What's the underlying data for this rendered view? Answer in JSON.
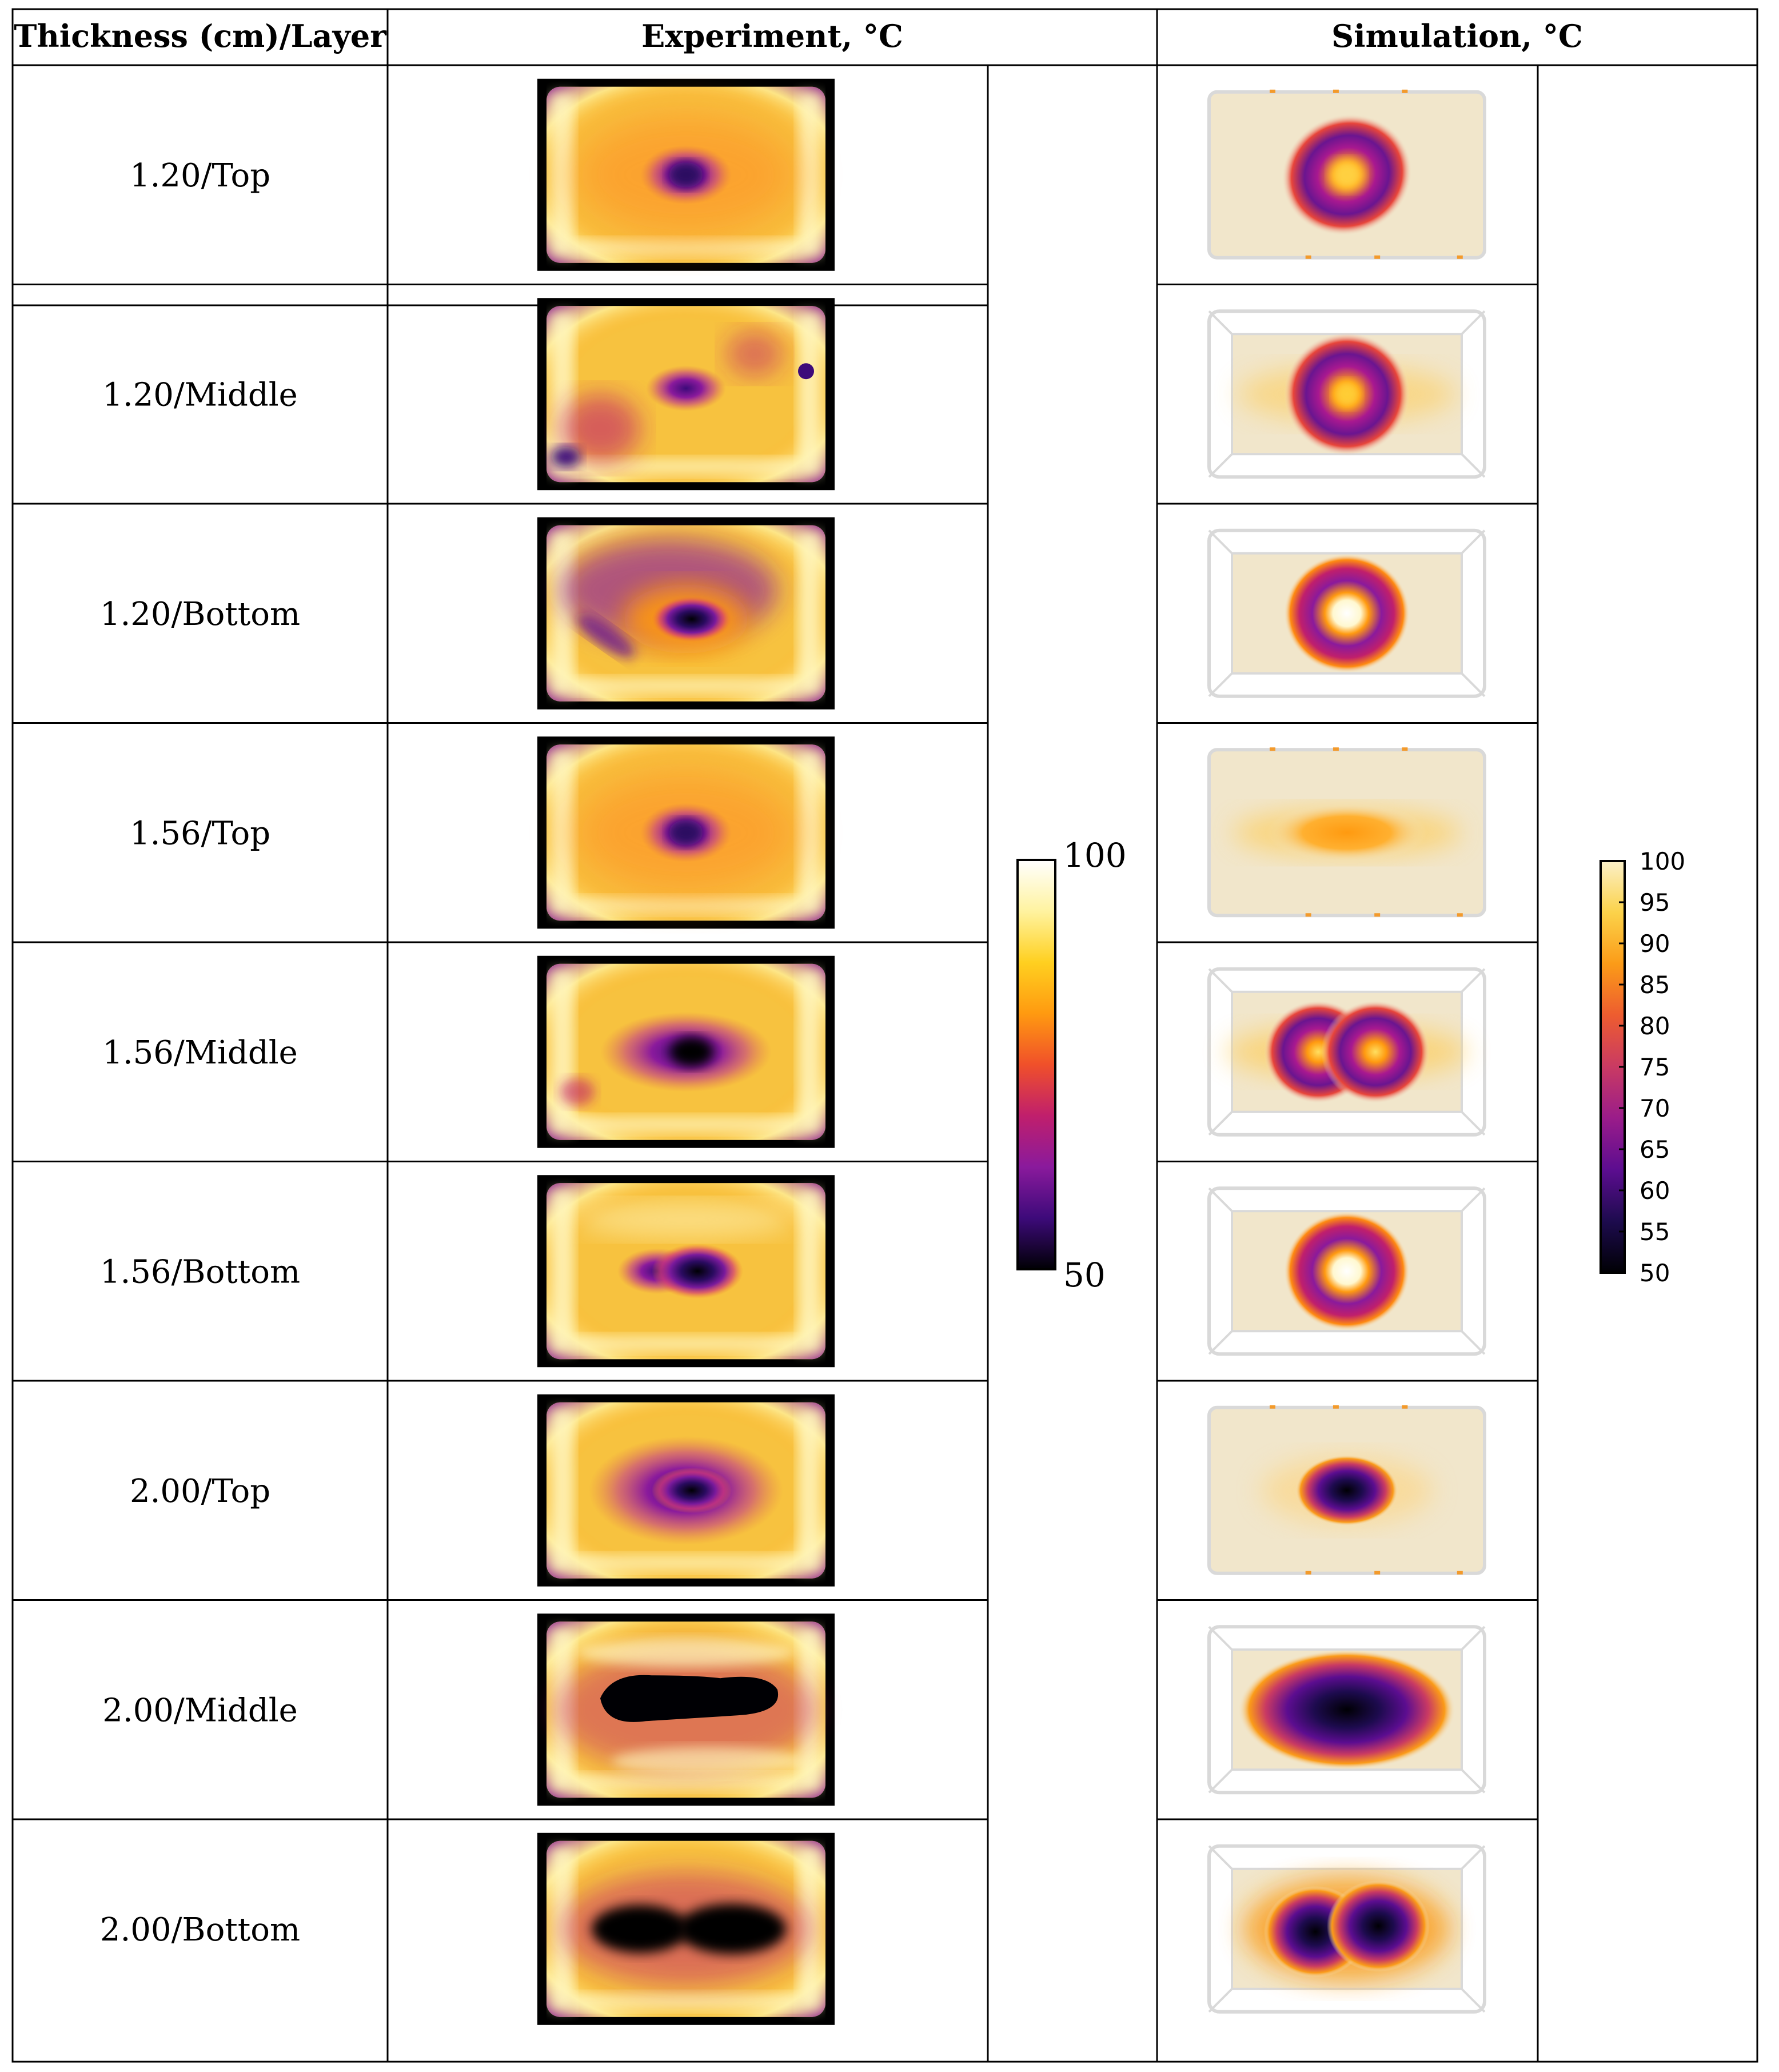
{
  "table": {
    "headers": {
      "thickness_layer": "Thickness (cm)/Layer",
      "experiment": "Experiment, °C",
      "simulation": "Simulation, °C"
    },
    "rows": [
      {
        "label": "1.20/Top",
        "exp_pattern": "center-spot",
        "sim_pattern": "ring",
        "sim_frame": "flat"
      },
      {
        "label": "1.20/Middle",
        "exp_pattern": "patchy-spot",
        "sim_pattern": "ring-wide",
        "sim_frame": "box"
      },
      {
        "label": "1.20/Bottom",
        "exp_pattern": "swirl-spot",
        "sim_pattern": "ring-hot",
        "sim_frame": "box"
      },
      {
        "label": "1.56/Top",
        "exp_pattern": "center-spot",
        "sim_pattern": "band",
        "sim_frame": "flat"
      },
      {
        "label": "1.56/Middle",
        "exp_pattern": "elong-spot",
        "sim_pattern": "double-ring",
        "sim_frame": "box"
      },
      {
        "label": "1.56/Bottom",
        "exp_pattern": "dumbbell",
        "sim_pattern": "ring-hot",
        "sim_frame": "box"
      },
      {
        "label": "2.00/Top",
        "exp_pattern": "big-spot",
        "sim_pattern": "cold-dot",
        "sim_frame": "flat"
      },
      {
        "label": "2.00/Middle",
        "exp_pattern": "cold-band",
        "sim_pattern": "cold-oval",
        "sim_frame": "box"
      },
      {
        "label": "2.00/Bottom",
        "exp_pattern": "cold-double",
        "sim_pattern": "cold-double",
        "sim_frame": "box"
      }
    ]
  },
  "experiment_colorbar": {
    "max_label": "100",
    "min_label": "50",
    "colors": [
      "#ffffff",
      "#fff3a0",
      "#ffd020",
      "#ff9a10",
      "#f0502a",
      "#c01f6c",
      "#8a1a9c",
      "#3d0a7a",
      "#000004"
    ]
  },
  "simulation_colorbar": {
    "ticks": [
      "100",
      "95",
      "90",
      "85",
      "80",
      "75",
      "70",
      "65",
      "60",
      "55",
      "50"
    ],
    "colors": [
      "#fbf0c8",
      "#fbd24a",
      "#fb9b18",
      "#ed5c30",
      "#c93a63",
      "#9a1c8a",
      "#5c0d90",
      "#1d0b4e",
      "#000004"
    ]
  },
  "heatmap_palette": {
    "experiment_bg": "#f7c23f",
    "experiment_hot": "#fff6bf",
    "experiment_frame": "#000000",
    "simulation_bg": "#f1e6cb",
    "simulation_frame": "#d9d9d9"
  }
}
